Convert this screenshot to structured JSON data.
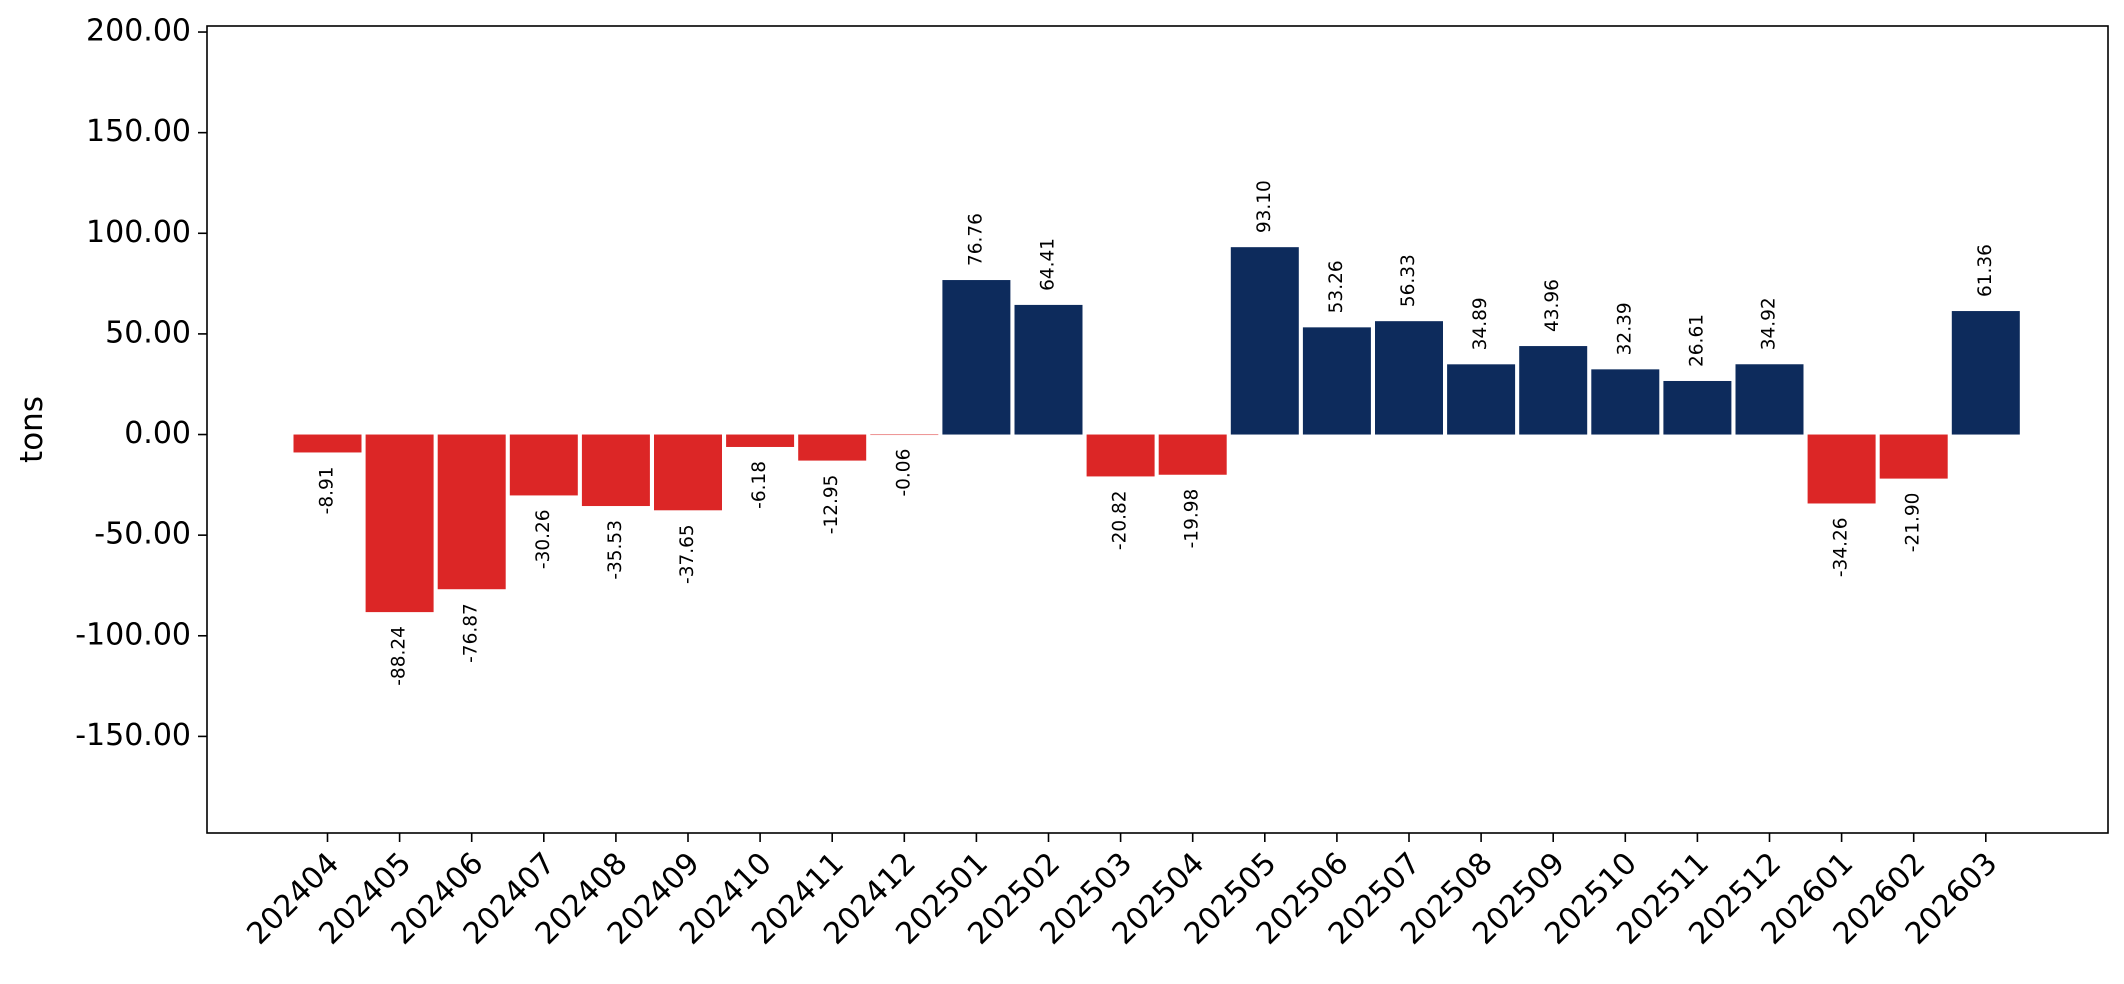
{
  "chart_data": {
    "type": "bar",
    "title": "",
    "xlabel": "",
    "ylabel": "tons",
    "ylim": [
      -198,
      203
    ],
    "yticks": [
      -150,
      -100,
      -50,
      0,
      50,
      100,
      150,
      200
    ],
    "ytick_labels": [
      "-150.00",
      "-100.00",
      "-50.00",
      "0.00",
      "50.00",
      "100.00",
      "150.00",
      "200.00"
    ],
    "categories": [
      "202404",
      "202405",
      "202406",
      "202407",
      "202408",
      "202409",
      "202410",
      "202411",
      "202412",
      "202501",
      "202502",
      "202503",
      "202504",
      "202505",
      "202506",
      "202507",
      "202508",
      "202509",
      "202510",
      "202511",
      "202512",
      "202601",
      "202602",
      "202603"
    ],
    "values": [
      -8.91,
      -88.24,
      -76.87,
      -30.26,
      -35.53,
      -37.65,
      -6.18,
      -12.95,
      -0.06,
      76.76,
      64.41,
      -20.82,
      -19.98,
      93.1,
      53.26,
      56.33,
      34.89,
      43.96,
      32.39,
      26.61,
      34.92,
      -34.26,
      -21.9,
      61.36
    ],
    "data_labels": [
      "-8.91",
      "-88.24",
      "-76.87",
      "-30.26",
      "-35.53",
      "-37.65",
      "-6.18",
      "-12.95",
      "-0.06",
      "76.76",
      "64.41",
      "-20.82",
      "-19.98",
      "93.10",
      "53.26",
      "56.33",
      "34.89",
      "43.96",
      "32.39",
      "26.61",
      "34.92",
      "-34.26",
      "-21.90",
      "61.36"
    ],
    "colors": {
      "positive": "#0d2b5c",
      "negative": "#dc2626"
    },
    "grid": false,
    "legend": "none"
  }
}
